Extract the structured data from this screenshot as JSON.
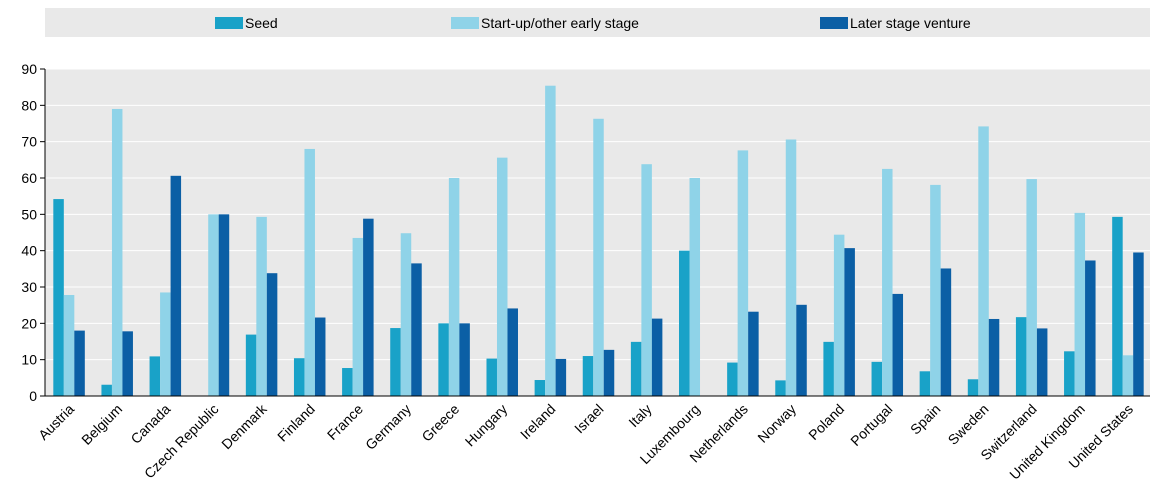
{
  "chart_data": {
    "type": "bar",
    "categories": [
      "Austria",
      "Belgium",
      "Canada",
      "Czech Republic",
      "Denmark",
      "Finland",
      "France",
      "Germany",
      "Greece",
      "Hungary",
      "Ireland",
      "Israel",
      "Italy",
      "Luxembourg",
      "Netherlands",
      "Norway",
      "Poland",
      "Portugal",
      "Spain",
      "Sweden",
      "Switzerland",
      "United Kingdom",
      "United States"
    ],
    "series": [
      {
        "name": "Seed",
        "color": "#19a2c8",
        "values": [
          54.2,
          3.1,
          10.9,
          0,
          16.9,
          10.4,
          7.7,
          18.7,
          20.0,
          10.3,
          4.4,
          11.0,
          14.9,
          40.0,
          9.2,
          4.3,
          14.9,
          9.4,
          6.8,
          4.6,
          21.7,
          12.3,
          49.3
        ]
      },
      {
        "name": "Start-up/other early stage",
        "color": "#8fd3e8",
        "values": [
          27.8,
          79.0,
          28.5,
          50.0,
          49.3,
          68.0,
          43.5,
          44.8,
          60.0,
          65.6,
          85.4,
          76.3,
          63.8,
          60.0,
          67.6,
          70.6,
          44.4,
          62.5,
          58.1,
          74.2,
          59.7,
          50.4,
          11.2
        ]
      },
      {
        "name": "Later stage venture",
        "color": "#0b5fa5",
        "values": [
          18.0,
          17.8,
          60.6,
          50.0,
          33.8,
          21.6,
          48.8,
          36.5,
          20.0,
          24.1,
          10.2,
          12.7,
          21.3,
          0,
          23.2,
          25.1,
          40.7,
          28.1,
          35.1,
          21.2,
          18.6,
          37.3,
          39.5
        ]
      }
    ],
    "ylim": [
      0,
      90
    ],
    "yticks": [
      0,
      10,
      20,
      30,
      40,
      50,
      60,
      70,
      80,
      90
    ],
    "grid": true,
    "legend_position": "top",
    "background": "#e9e9e9"
  }
}
